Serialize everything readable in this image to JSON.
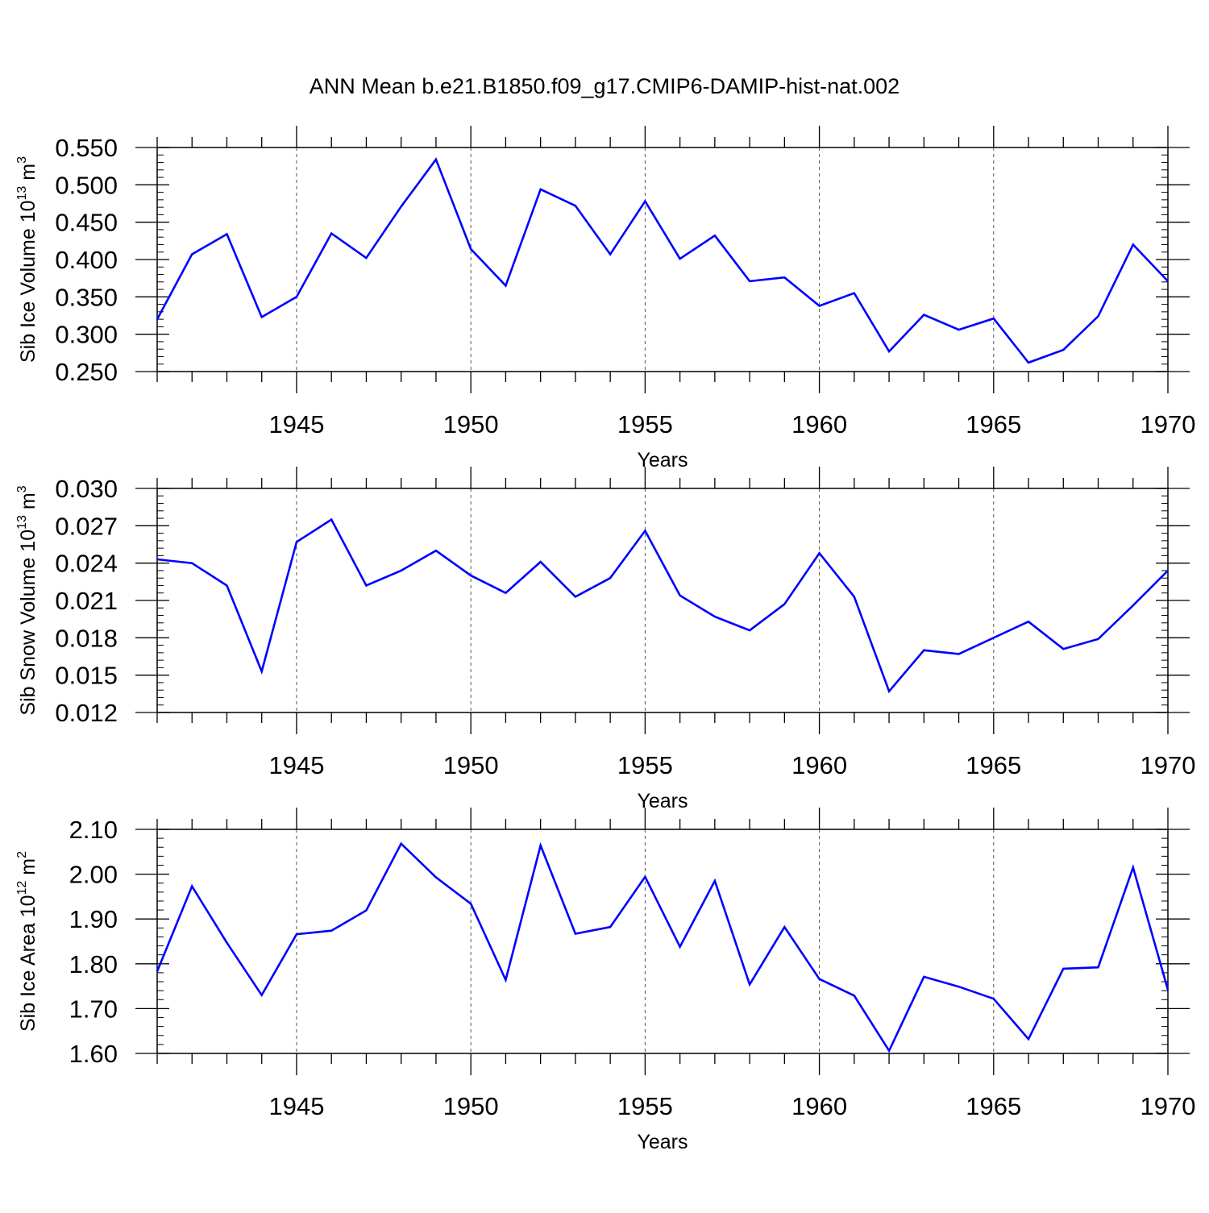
{
  "title": "ANN Mean b.e21.B1850.f09_g17.CMIP6-DAMIP-hist-nat.002",
  "colors": {
    "line": "#0000ff",
    "axis": "#000000",
    "grid": "#555555"
  },
  "chart_data": [
    {
      "type": "line",
      "ylabel": "Sib Ice Volume 10",
      "ylabel_sup": "13",
      "ylabel_unit": " m",
      "ylabel_unit_sup": "3",
      "xlabel": "Years",
      "xlim": [
        1941,
        1970
      ],
      "ylim": [
        0.25,
        0.55
      ],
      "yticks": [
        0.25,
        0.3,
        0.35,
        0.4,
        0.45,
        0.5,
        0.55
      ],
      "ytick_labels": [
        "0.250",
        "0.300",
        "0.350",
        "0.400",
        "0.450",
        "0.500",
        "0.550"
      ],
      "xticks": [
        1945,
        1950,
        1955,
        1960,
        1965,
        1970
      ],
      "xtick_labels": [
        "1945",
        "1950",
        "1955",
        "1960",
        "1965",
        "1970"
      ],
      "grid_x": true,
      "x": [
        1941,
        1942,
        1943,
        1944,
        1945,
        1946,
        1947,
        1948,
        1949,
        1950,
        1951,
        1952,
        1953,
        1954,
        1955,
        1956,
        1957,
        1958,
        1959,
        1960,
        1961,
        1962,
        1963,
        1964,
        1965,
        1966,
        1967,
        1968,
        1969,
        1970
      ],
      "series": [
        {
          "values": [
            0.32,
            0.407,
            0.434,
            0.323,
            0.35,
            0.435,
            0.402,
            0.471,
            0.534,
            0.414,
            0.365,
            0.494,
            0.472,
            0.407,
            0.478,
            0.401,
            0.432,
            0.371,
            0.376,
            0.338,
            0.355,
            0.277,
            0.326,
            0.306,
            0.321,
            0.262,
            0.279,
            0.324,
            0.42,
            0.371
          ]
        }
      ]
    },
    {
      "type": "line",
      "ylabel": "Sib Snow Volume 10",
      "ylabel_sup": "13",
      "ylabel_unit": " m",
      "ylabel_unit_sup": "3",
      "xlabel": "Years",
      "xlim": [
        1941,
        1970
      ],
      "ylim": [
        0.012,
        0.03
      ],
      "yticks": [
        0.012,
        0.015,
        0.018,
        0.021,
        0.024,
        0.027,
        0.03
      ],
      "ytick_labels": [
        "0.012",
        "0.015",
        "0.018",
        "0.021",
        "0.024",
        "0.027",
        "0.030"
      ],
      "xticks": [
        1945,
        1950,
        1955,
        1960,
        1965,
        1970
      ],
      "xtick_labels": [
        "1945",
        "1950",
        "1955",
        "1960",
        "1965",
        "1970"
      ],
      "grid_x": true,
      "x": [
        1941,
        1942,
        1943,
        1944,
        1945,
        1946,
        1947,
        1948,
        1949,
        1950,
        1951,
        1952,
        1953,
        1954,
        1955,
        1956,
        1957,
        1958,
        1959,
        1960,
        1961,
        1962,
        1963,
        1964,
        1965,
        1966,
        1967,
        1968,
        1969,
        1970
      ],
      "series": [
        {
          "values": [
            0.0243,
            0.024,
            0.0222,
            0.0153,
            0.0257,
            0.0275,
            0.0222,
            0.0234,
            0.025,
            0.023,
            0.0216,
            0.0241,
            0.0213,
            0.0228,
            0.0266,
            0.0214,
            0.0197,
            0.0186,
            0.0207,
            0.0248,
            0.0213,
            0.0137,
            0.017,
            0.0167,
            0.018,
            0.0193,
            0.0171,
            0.0179,
            0.0206,
            0.0234
          ]
        }
      ]
    },
    {
      "type": "line",
      "ylabel": "Sib Ice Area 10",
      "ylabel_sup": "12",
      "ylabel_unit": " m",
      "ylabel_unit_sup": "2",
      "xlabel": "Years",
      "xlim": [
        1941,
        1970
      ],
      "ylim": [
        1.6,
        2.1
      ],
      "yticks": [
        1.6,
        1.7,
        1.8,
        1.9,
        2.0,
        2.1
      ],
      "ytick_labels": [
        "1.60",
        "1.70",
        "1.80",
        "1.90",
        "2.00",
        "2.10"
      ],
      "xticks": [
        1945,
        1950,
        1955,
        1960,
        1965,
        1970
      ],
      "xtick_labels": [
        "1945",
        "1950",
        "1955",
        "1960",
        "1965",
        "1970"
      ],
      "grid_x": true,
      "x": [
        1941,
        1942,
        1943,
        1944,
        1945,
        1946,
        1947,
        1948,
        1949,
        1950,
        1951,
        1952,
        1953,
        1954,
        1955,
        1956,
        1957,
        1958,
        1959,
        1960,
        1961,
        1962,
        1963,
        1964,
        1965,
        1966,
        1967,
        1968,
        1969,
        1970
      ],
      "series": [
        {
          "values": [
            1.783,
            1.973,
            1.847,
            1.73,
            1.866,
            1.874,
            1.919,
            2.068,
            1.993,
            1.934,
            1.764,
            2.064,
            1.867,
            1.882,
            1.994,
            1.838,
            1.985,
            1.754,
            1.882,
            1.766,
            1.729,
            1.606,
            1.771,
            1.749,
            1.722,
            1.632,
            1.789,
            1.792,
            2.015,
            1.742
          ]
        }
      ]
    }
  ]
}
